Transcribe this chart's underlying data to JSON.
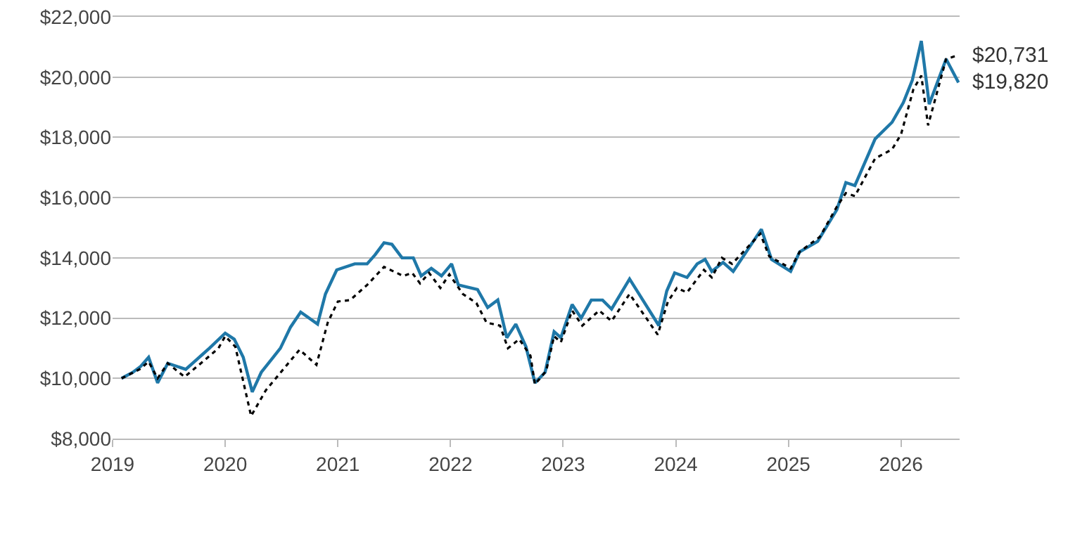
{
  "chart_data": {
    "type": "line",
    "x": [
      2019.08,
      2019.18,
      2019.25,
      2019.32,
      2019.4,
      2019.49,
      2019.65,
      2019.8,
      2019.86,
      2020.0,
      2020.08,
      2020.16,
      2020.24,
      2020.32,
      2020.49,
      2020.58,
      2020.67,
      2020.82,
      2020.89,
      2020.99,
      2021.15,
      2021.26,
      2021.33,
      2021.41,
      2021.48,
      2021.57,
      2021.67,
      2021.74,
      2021.83,
      2021.92,
      2022.01,
      2022.07,
      2022.24,
      2022.33,
      2022.42,
      2022.5,
      2022.58,
      2022.67,
      2022.75,
      2022.84,
      2022.92,
      2022.98,
      2023.08,
      2023.16,
      2023.25,
      2023.35,
      2023.43,
      2023.59,
      2023.85,
      2023.92,
      2023.99,
      2024.1,
      2024.19,
      2024.26,
      2024.32,
      2024.42,
      2024.51,
      2024.76,
      2024.85,
      2025.02,
      2025.1,
      2025.26,
      2025.43,
      2025.51,
      2025.59,
      2025.77,
      2025.92,
      2026.02,
      2026.1,
      2026.18,
      2026.25,
      2026.4,
      2026.51
    ],
    "series": [
      {
        "color": "#1f78a8",
        "line_style": "solid",
        "values": [
          10000,
          10200,
          10400,
          10700,
          9850,
          10500,
          10300,
          10800,
          11000,
          11500,
          11300,
          10700,
          9550,
          10200,
          11000,
          11700,
          12200,
          11800,
          12800,
          13600,
          13800,
          13800,
          14100,
          14500,
          14450,
          14000,
          14000,
          13400,
          13650,
          13400,
          13800,
          13100,
          12950,
          12350,
          12600,
          11350,
          11800,
          11050,
          9850,
          10200,
          11550,
          11350,
          12450,
          12000,
          12600,
          12600,
          12300,
          13300,
          11750,
          12900,
          13500,
          13350,
          13800,
          13950,
          13550,
          13850,
          13550,
          14950,
          13950,
          13550,
          14200,
          14550,
          15600,
          16500,
          16400,
          17950,
          18500,
          19150,
          19900,
          21200,
          19100,
          20600,
          19820
        ]
      },
      {
        "color": "#000000",
        "line_style": "dotted",
        "x": [
          2019.08,
          2019.24,
          2019.32,
          2019.4,
          2019.49,
          2019.64,
          2019.8,
          2019.94,
          2020.0,
          2020.09,
          2020.23,
          2020.36,
          2020.66,
          2020.81,
          2020.91,
          2021.0,
          2021.11,
          2021.26,
          2021.41,
          2021.58,
          2021.66,
          2021.73,
          2021.81,
          2021.91,
          2021.99,
          2022.11,
          2022.23,
          2022.32,
          2022.44,
          2022.51,
          2022.61,
          2022.71,
          2022.75,
          2022.85,
          2022.92,
          2022.98,
          2023.08,
          2023.17,
          2023.32,
          2023.43,
          2023.59,
          2023.84,
          2023.93,
          2024.01,
          2024.1,
          2024.25,
          2024.32,
          2024.41,
          2024.5,
          2024.75,
          2024.83,
          2025.02,
          2025.1,
          2025.28,
          2025.43,
          2025.51,
          2025.59,
          2025.77,
          2025.92,
          2026.0,
          2026.11,
          2026.18,
          2026.24,
          2026.4,
          2026.51
        ],
        "values": [
          10000,
          10300,
          10550,
          10000,
          10500,
          10050,
          10550,
          11000,
          11400,
          11050,
          8750,
          9600,
          10950,
          10450,
          11850,
          12550,
          12600,
          13100,
          13700,
          13400,
          13500,
          13150,
          13500,
          13000,
          13450,
          12800,
          12500,
          11850,
          11750,
          11000,
          11300,
          10750,
          9800,
          10250,
          11400,
          11200,
          12250,
          11750,
          12250,
          11900,
          12800,
          11450,
          12550,
          13000,
          12850,
          13600,
          13350,
          14000,
          13800,
          14800,
          14050,
          13650,
          14200,
          14700,
          15700,
          16150,
          16050,
          17300,
          17600,
          18100,
          19600,
          20050,
          18400,
          20600,
          20731
        ]
      }
    ],
    "xlim": [
      2019,
      2026.52
    ],
    "xticks": [
      2019,
      2020,
      2021,
      2022,
      2023,
      2024,
      2025,
      2026
    ],
    "ylim": [
      8000,
      22000
    ],
    "yticks": [
      {
        "value": 8000,
        "label": "$8,000"
      },
      {
        "value": 10000,
        "label": "$10,000"
      },
      {
        "value": 12000,
        "label": "$12,000"
      },
      {
        "value": 14000,
        "label": "$14,000"
      },
      {
        "value": 16000,
        "label": "$16,000"
      },
      {
        "value": 18000,
        "label": "$18,000"
      },
      {
        "value": 20000,
        "label": "$20,000"
      },
      {
        "value": 22000,
        "label": "$22,000"
      }
    ],
    "grid": "y",
    "marker": "none",
    "annotations": [
      {
        "text": "$20,731",
        "x": 2026.51,
        "y": 20731
      },
      {
        "text": "$19,820",
        "x": 2026.51,
        "y": 19820
      }
    ]
  }
}
